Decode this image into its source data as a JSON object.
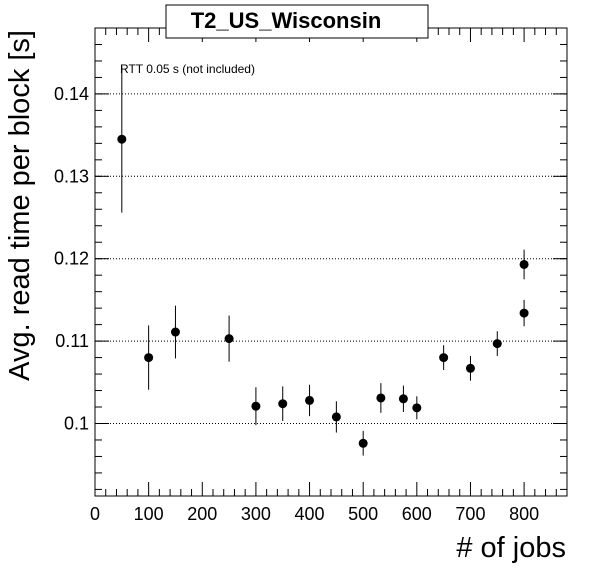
{
  "chart_data": {
    "type": "scatter",
    "title": "T2_US_Wisconsin",
    "xlabel": "# of jobs",
    "ylabel": "Avg. read time per block [s]",
    "annotation": "RTT 0.05 s (not included)",
    "xlim": [
      0,
      880
    ],
    "ylim": [
      0.0912,
      0.148
    ],
    "x_ticks": [
      0,
      100,
      200,
      300,
      400,
      500,
      600,
      700,
      800
    ],
    "y_ticks": [
      0.1,
      0.11,
      0.12,
      0.13,
      0.14
    ],
    "y_tick_labels": [
      "0.1",
      "0.11",
      "0.12",
      "0.13",
      "0.14"
    ],
    "grid": "horizontal dotted",
    "series": [
      {
        "points": [
          {
            "x": 50,
            "y": 0.1345,
            "err": 0.0089
          },
          {
            "x": 100,
            "y": 0.108,
            "err": 0.0039
          },
          {
            "x": 150,
            "y": 0.1111,
            "err": 0.0032
          },
          {
            "x": 250,
            "y": 0.1103,
            "err": 0.0028
          },
          {
            "x": 300,
            "y": 0.1021,
            "err": 0.0023
          },
          {
            "x": 350,
            "y": 0.1024,
            "err": 0.0021
          },
          {
            "x": 400,
            "y": 0.1028,
            "err": 0.0019
          },
          {
            "x": 450,
            "y": 0.1008,
            "err": 0.0019
          },
          {
            "x": 500,
            "y": 0.0976,
            "err": 0.0015
          },
          {
            "x": 533,
            "y": 0.1031,
            "err": 0.0018
          },
          {
            "x": 575,
            "y": 0.103,
            "err": 0.0016
          },
          {
            "x": 600,
            "y": 0.1019,
            "err": 0.0014
          },
          {
            "x": 650,
            "y": 0.108,
            "err": 0.0015
          },
          {
            "x": 700,
            "y": 0.1067,
            "err": 0.0015
          },
          {
            "x": 750,
            "y": 0.1097,
            "err": 0.0015
          },
          {
            "x": 800,
            "y": 0.1134,
            "err": 0.0016
          },
          {
            "x": 800,
            "y": 0.1193,
            "err": 0.0018
          }
        ]
      }
    ]
  }
}
